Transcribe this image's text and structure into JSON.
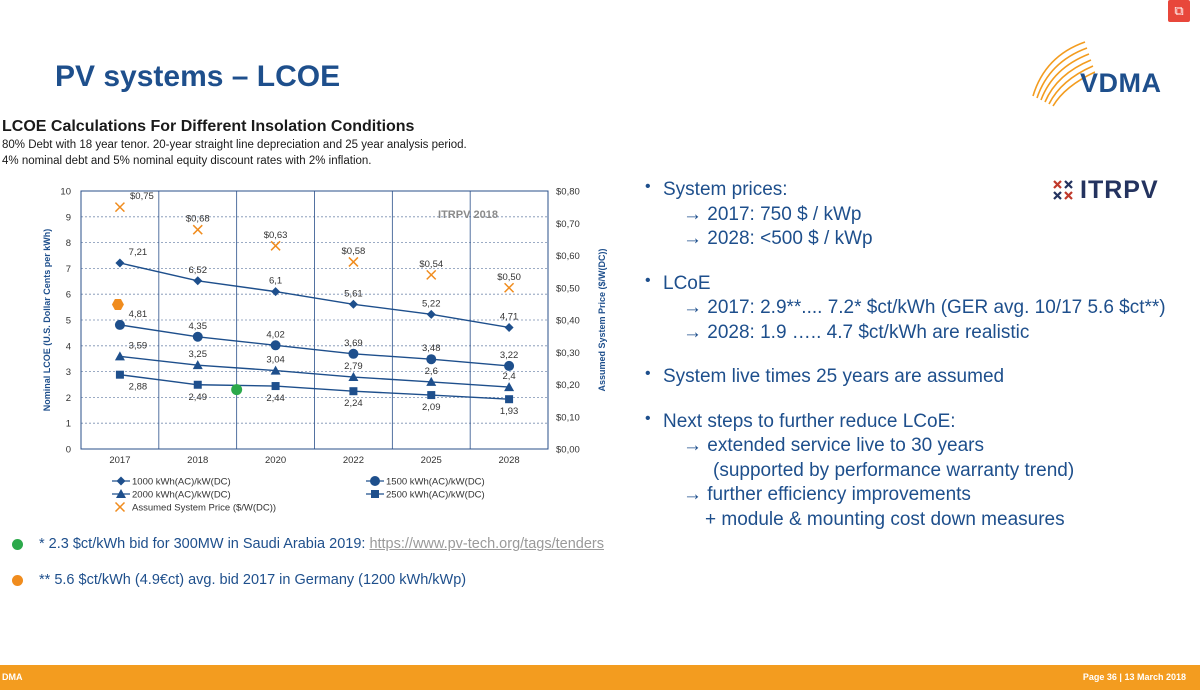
{
  "slide": {
    "title": "PV systems – LCOE",
    "vdma_logo_text": "VDMA",
    "itrpv_logo_text": "ITRPV"
  },
  "chart_heading": "LCOE Calculations For Different Insolation Conditions",
  "chart_subtitle_lines": [
    "80% Debt with 18 year tenor. 20-year straight line depreciation and 25 year analysis period.",
    "4% nominal debt and 5% nominal equity discount rates with 2% inflation."
  ],
  "chart_data": {
    "type": "line",
    "watermark": "ITRPV 2018",
    "categories": [
      "2017",
      "2018",
      "2020",
      "2022",
      "2025",
      "2028"
    ],
    "ylabel": "Nominal LCOE (U.S. Dollar Cents per kWh)",
    "ylim": [
      0,
      10
    ],
    "yticks": [
      "0",
      "1",
      "2",
      "3",
      "4",
      "5",
      "6",
      "7",
      "8",
      "9",
      "10"
    ],
    "y2label": "Assumed System Price ($/W(DC))",
    "y2lim": [
      0,
      0.8
    ],
    "y2ticks": [
      "$0,00",
      "$0,10",
      "$0,20",
      "$0,30",
      "$0,40",
      "$0,50",
      "$0,60",
      "$0,70",
      "$0,80"
    ],
    "series": [
      {
        "name": "1000 kWh(AC)/kW(DC)",
        "marker": "diamond",
        "values": [
          7.21,
          6.52,
          6.1,
          5.61,
          5.22,
          4.71
        ],
        "labels": [
          "7,21",
          "6,52",
          "6,1",
          "5,61",
          "5,22",
          "4,71"
        ]
      },
      {
        "name": "1500 kWh(AC)/kW(DC)",
        "marker": "circle",
        "values": [
          4.81,
          4.35,
          4.02,
          3.69,
          3.48,
          3.22
        ],
        "labels": [
          "4,81",
          "4,35",
          "4,02",
          "3,69",
          "3,48",
          "3,22"
        ]
      },
      {
        "name": "2000 kWh(AC)/kW(DC)",
        "marker": "triangle",
        "values": [
          3.59,
          3.25,
          3.04,
          2.79,
          2.6,
          2.4
        ],
        "labels": [
          "3,59",
          "3,25",
          "3,04",
          "2,79",
          "2,6",
          "2,4"
        ]
      },
      {
        "name": "2500 kWh(AC)/kW(DC)",
        "marker": "square",
        "values": [
          2.88,
          2.49,
          2.44,
          2.24,
          2.09,
          1.93
        ],
        "labels": [
          "2,88",
          "2,49",
          "2,44",
          "2,24",
          "2,09",
          "1,93"
        ]
      }
    ],
    "price_series": {
      "name": "Assumed System Price ($/W(DC))",
      "marker": "x",
      "axis": "right",
      "values": [
        0.75,
        0.68,
        0.63,
        0.58,
        0.54,
        0.5
      ],
      "labels": [
        "$0,75",
        "$0,68",
        "$0,63",
        "$0,58",
        "$0,54",
        "$0,50"
      ]
    },
    "extra_points": [
      {
        "note": "**",
        "x_index": 0,
        "y": 5.6,
        "color": "#f08c1e"
      },
      {
        "note": "*",
        "x_index": 1.5,
        "y": 2.3,
        "color": "#2ca94b"
      }
    ],
    "legend": [
      "1000 kWh(AC)/kW(DC)",
      "1500 kWh(AC)/kW(DC)",
      "2000 kWh(AC)/kW(DC)",
      "2500 kWh(AC)/kW(DC)",
      "Assumed System Price ($/W(DC))"
    ],
    "legend_position": "bottom",
    "grid": true,
    "colors": {
      "line": "#1e4f8c",
      "price": "#f08c1e"
    }
  },
  "bullets": [
    {
      "lines": [
        "System prices:",
        "→ 2017:   750 $ / kWp",
        "→ 2028: <500 $ / kWp"
      ]
    },
    {
      "lines": [
        "LCoE",
        "→ 2017: 2.9**.... 7.2* $ct/kWh (GER avg. 10/17 5.6 $ct**)",
        "→ 2028: 1.9 ….. 4.7   $ct/kWh are realistic"
      ]
    },
    {
      "lines": [
        "System live times 25 years are assumed"
      ]
    },
    {
      "lines": [
        "Next steps to further reduce LCoE:",
        "→ extended service live to 30 years",
        "(supported by performance warranty trend)",
        "→ further efficiency improvements",
        "+ module & mounting cost down measures"
      ]
    }
  ],
  "footnotes": [
    {
      "text": "*  2.3 $ct/kWh bid for 300MW in Saudi Arabia 2019:",
      "link": "https://www.pv-tech.org/tags/tenders",
      "color": "#2ca94b"
    },
    {
      "text": "** 5.6 $ct/kWh (4.9€ct) avg. bid  2017 in Germany (1200 kWh/kWp)",
      "link": "",
      "color": "#f08c1e"
    }
  ],
  "footer": {
    "left": "DMA",
    "right": "Page 36 | 13 March 2018"
  }
}
